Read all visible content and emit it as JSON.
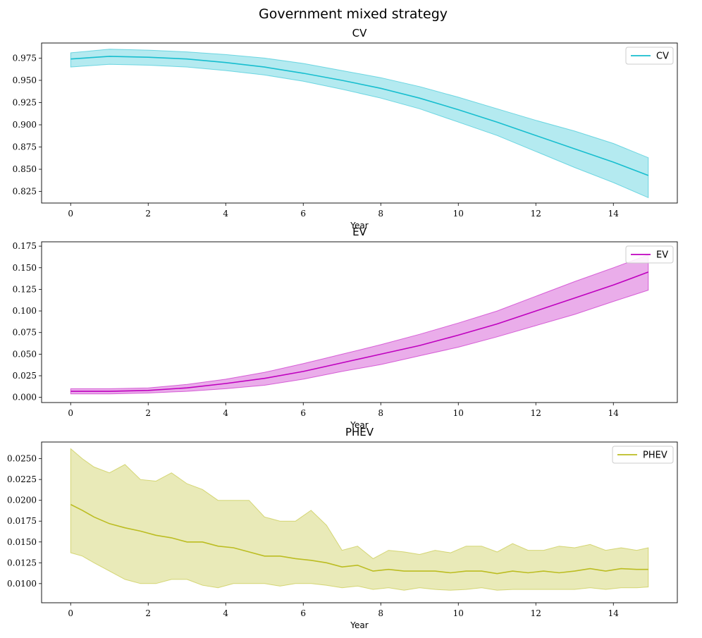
{
  "figure": {
    "suptitle": "Government mixed strategy"
  },
  "chart_data": [
    {
      "type": "line",
      "title": "CV",
      "xlabel": "Year",
      "ylabel": "",
      "xlim": [
        -0.75,
        15.65
      ],
      "ylim": [
        0.812,
        0.992
      ],
      "xticks": [
        0,
        2,
        4,
        6,
        8,
        10,
        12,
        14
      ],
      "yticks": [
        0.825,
        0.85,
        0.875,
        0.9,
        0.925,
        0.95,
        0.975
      ],
      "ytick_decimals": 3,
      "legend": "top-right",
      "grid": false,
      "series": [
        {
          "name": "CV",
          "color": "#17becf",
          "x": [
            0,
            1,
            2,
            3,
            4,
            5,
            6,
            7,
            8,
            9,
            10,
            11,
            12,
            13,
            14,
            14.9
          ],
          "values": [
            0.974,
            0.977,
            0.976,
            0.974,
            0.97,
            0.965,
            0.958,
            0.95,
            0.941,
            0.93,
            0.917,
            0.903,
            0.888,
            0.873,
            0.858,
            0.843
          ],
          "band_lower": [
            0.965,
            0.968,
            0.967,
            0.965,
            0.961,
            0.956,
            0.949,
            0.94,
            0.93,
            0.918,
            0.903,
            0.888,
            0.87,
            0.852,
            0.835,
            0.818
          ],
          "band_upper": [
            0.981,
            0.985,
            0.984,
            0.982,
            0.979,
            0.975,
            0.969,
            0.961,
            0.953,
            0.943,
            0.931,
            0.918,
            0.905,
            0.893,
            0.879,
            0.863
          ]
        }
      ]
    },
    {
      "type": "line",
      "title": "EV",
      "xlabel": "Year",
      "ylabel": "",
      "xlim": [
        -0.75,
        15.65
      ],
      "ylim": [
        -0.006,
        0.18
      ],
      "xticks": [
        0,
        2,
        4,
        6,
        8,
        10,
        12,
        14
      ],
      "yticks": [
        0.0,
        0.025,
        0.05,
        0.075,
        0.1,
        0.125,
        0.15,
        0.175
      ],
      "ytick_decimals": 3,
      "legend": "top-right",
      "grid": false,
      "series": [
        {
          "name": "EV",
          "color": "#bf00bf",
          "x": [
            0,
            1,
            2,
            3,
            4,
            5,
            6,
            7,
            8,
            9,
            10,
            11,
            12,
            13,
            14,
            14.9
          ],
          "values": [
            0.007,
            0.007,
            0.008,
            0.011,
            0.016,
            0.022,
            0.03,
            0.04,
            0.05,
            0.06,
            0.072,
            0.085,
            0.1,
            0.115,
            0.13,
            0.145
          ],
          "band_lower": [
            0.004,
            0.004,
            0.005,
            0.007,
            0.01,
            0.014,
            0.021,
            0.03,
            0.038,
            0.048,
            0.058,
            0.07,
            0.083,
            0.096,
            0.111,
            0.124
          ],
          "band_upper": [
            0.01,
            0.01,
            0.011,
            0.015,
            0.021,
            0.029,
            0.039,
            0.05,
            0.061,
            0.073,
            0.086,
            0.1,
            0.117,
            0.134,
            0.15,
            0.165
          ]
        }
      ]
    },
    {
      "type": "line",
      "title": "PHEV",
      "xlabel": "Year",
      "ylabel": "",
      "xlim": [
        -0.75,
        15.65
      ],
      "ylim": [
        0.0077,
        0.027
      ],
      "xticks": [
        0,
        2,
        4,
        6,
        8,
        10,
        12,
        14
      ],
      "yticks": [
        0.01,
        0.0125,
        0.015,
        0.0175,
        0.02,
        0.0225,
        0.025
      ],
      "ytick_decimals": 4,
      "legend": "top-right",
      "grid": false,
      "series": [
        {
          "name": "PHEV",
          "color": "#bcbd22",
          "x": [
            0,
            0.3,
            0.6,
            1.0,
            1.4,
            1.8,
            2.2,
            2.6,
            3.0,
            3.4,
            3.8,
            4.2,
            4.6,
            5.0,
            5.4,
            5.8,
            6.2,
            6.6,
            7.0,
            7.4,
            7.8,
            8.2,
            8.6,
            9.0,
            9.4,
            9.8,
            10.2,
            10.6,
            11.0,
            11.4,
            11.8,
            12.2,
            12.6,
            13.0,
            13.4,
            13.8,
            14.2,
            14.6,
            14.9
          ],
          "values": [
            0.0195,
            0.0188,
            0.018,
            0.0172,
            0.0167,
            0.0163,
            0.0158,
            0.0155,
            0.015,
            0.015,
            0.0145,
            0.0143,
            0.0138,
            0.0133,
            0.0133,
            0.013,
            0.0128,
            0.0125,
            0.012,
            0.0122,
            0.0115,
            0.0117,
            0.0115,
            0.0115,
            0.0115,
            0.0113,
            0.0115,
            0.0115,
            0.0112,
            0.0115,
            0.0113,
            0.0115,
            0.0113,
            0.0115,
            0.0118,
            0.0115,
            0.0118,
            0.0117,
            0.0117
          ],
          "band_lower": [
            0.0137,
            0.0133,
            0.0125,
            0.0115,
            0.0105,
            0.01,
            0.01,
            0.0105,
            0.0105,
            0.0098,
            0.0095,
            0.01,
            0.01,
            0.01,
            0.0097,
            0.01,
            0.01,
            0.0098,
            0.0095,
            0.0097,
            0.0093,
            0.0095,
            0.0092,
            0.0095,
            0.0093,
            0.0092,
            0.0093,
            0.0095,
            0.0092,
            0.0093,
            0.0093,
            0.0093,
            0.0093,
            0.0093,
            0.0095,
            0.0093,
            0.0095,
            0.0095,
            0.0096
          ],
          "band_upper": [
            0.0262,
            0.025,
            0.024,
            0.0233,
            0.0243,
            0.0225,
            0.0223,
            0.0233,
            0.022,
            0.0213,
            0.02,
            0.02,
            0.02,
            0.018,
            0.0175,
            0.0175,
            0.0188,
            0.017,
            0.014,
            0.0145,
            0.013,
            0.014,
            0.0138,
            0.0135,
            0.014,
            0.0137,
            0.0145,
            0.0145,
            0.0138,
            0.0148,
            0.014,
            0.014,
            0.0145,
            0.0143,
            0.0147,
            0.014,
            0.0143,
            0.014,
            0.0143
          ]
        }
      ]
    }
  ]
}
